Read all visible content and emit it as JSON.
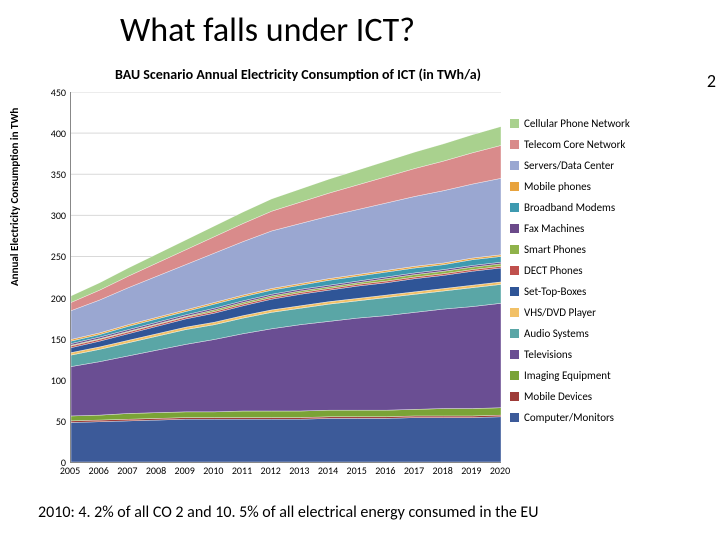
{
  "title": "What falls under ICT?",
  "slide_number": "2",
  "chart": {
    "type": "area",
    "title": "BAU Scenario Annual Electricity Consumption of ICT (in TWh/a)",
    "ylabel": "Annual Electricity Consumption in TWh",
    "title_fontsize": 14,
    "label_fontsize": 11,
    "tick_fontsize": 10,
    "background_color": "#ffffff",
    "grid_color": "#d9d9d9",
    "ylim": [
      0,
      450
    ],
    "ytick_step": 50,
    "yticks": [
      0,
      50,
      100,
      150,
      200,
      250,
      300,
      350,
      400,
      450
    ],
    "x_categories": [
      "2005",
      "2006",
      "2007",
      "2008",
      "2009",
      "2010",
      "2011",
      "2012",
      "2013",
      "2014",
      "2015",
      "2016",
      "2017",
      "2018",
      "2019",
      "2020"
    ],
    "legend_order": [
      "Cellular Phone Network",
      "Telecom Core Network",
      "Servers/Data Center",
      "Mobile phones",
      "Broadband Modems",
      "Fax Machines",
      "Smart Phones",
      "DECT Phones",
      "Set-Top-Boxes",
      "VHS/DVD Player",
      "Audio Systems",
      "Televisions",
      "Imaging Equipment",
      "Mobile Devices",
      "Computer/Monitors"
    ],
    "colors": {
      "Cellular Phone Network": "#a9d18e",
      "Telecom Core Network": "#d98b8b",
      "Servers/Data Center": "#9aa7d1",
      "Mobile phones": "#e8a33d",
      "Broadband Modems": "#3e9ab0",
      "Fax Machines": "#6b4a8a",
      "Smart Phones": "#8fb24a",
      "DECT Phones": "#c0504d",
      "Set-Top-Boxes": "#2f5597",
      "VHS/DVD Player": "#f2c167",
      "Audio Systems": "#5aa6a6",
      "Televisions": "#6a4e93",
      "Imaging Equipment": "#7aa336",
      "Mobile Devices": "#9e3b38",
      "Computer/Monitors": "#3c5a99"
    },
    "series": {
      "Computer/Monitors": [
        48,
        49,
        50,
        51,
        52,
        52,
        52,
        52,
        52,
        53,
        53,
        53,
        54,
        54,
        54,
        55
      ],
      "Mobile Devices": [
        2,
        2,
        2,
        2,
        2,
        2,
        2,
        2,
        2,
        2,
        2,
        2,
        2,
        2,
        2,
        2
      ],
      "Imaging Equipment": [
        6,
        6,
        7,
        7,
        7,
        7,
        8,
        8,
        8,
        8,
        8,
        8,
        8,
        9,
        9,
        9
      ],
      "Televisions": [
        60,
        65,
        70,
        76,
        82,
        88,
        94,
        100,
        105,
        108,
        112,
        115,
        118,
        121,
        124,
        127
      ],
      "Audio Systems": [
        14,
        15,
        16,
        17,
        18,
        18,
        19,
        20,
        20,
        21,
        21,
        22,
        22,
        22,
        23,
        23
      ],
      "VHS/DVD Player": [
        3,
        3,
        3,
        3,
        3,
        3,
        3,
        3,
        3,
        3,
        3,
        3,
        3,
        3,
        3,
        3
      ],
      "Set-Top-Boxes": [
        6,
        7,
        8,
        9,
        10,
        11,
        12,
        13,
        14,
        14,
        15,
        15,
        16,
        16,
        17,
        17
      ],
      "DECT Phones": [
        2,
        2,
        2,
        2,
        2,
        2,
        2,
        2,
        2,
        2,
        2,
        2,
        2,
        2,
        2,
        2
      ],
      "Smart Phones": [
        1,
        1,
        1,
        1,
        1,
        2,
        2,
        2,
        2,
        2,
        2,
        3,
        3,
        3,
        3,
        3
      ],
      "Fax Machines": [
        2,
        2,
        2,
        2,
        2,
        2,
        2,
        2,
        2,
        2,
        2,
        2,
        2,
        2,
        2,
        2
      ],
      "Broadband Modems": [
        3,
        3,
        4,
        4,
        4,
        5,
        5,
        5,
        5,
        6,
        6,
        6,
        6,
        6,
        7,
        7
      ],
      "Mobile phones": [
        2,
        2,
        2,
        2,
        2,
        2,
        2,
        2,
        2,
        2,
        2,
        2,
        2,
        2,
        2,
        2
      ],
      "Servers/Data Center": [
        35,
        40,
        45,
        50,
        55,
        60,
        65,
        70,
        73,
        76,
        79,
        82,
        85,
        88,
        90,
        93
      ],
      "Telecom Core Network": [
        10,
        12,
        14,
        16,
        18,
        20,
        22,
        24,
        26,
        28,
        30,
        32,
        34,
        36,
        38,
        40
      ],
      "Cellular Phone Network": [
        8,
        9,
        10,
        11,
        12,
        13,
        14,
        15,
        16,
        17,
        18,
        19,
        20,
        21,
        22,
        23
      ]
    },
    "stack_order": [
      "Computer/Monitors",
      "Mobile Devices",
      "Imaging Equipment",
      "Televisions",
      "Audio Systems",
      "VHS/DVD Player",
      "Set-Top-Boxes",
      "DECT Phones",
      "Smart Phones",
      "Fax Machines",
      "Broadband Modems",
      "Mobile phones",
      "Servers/Data Center",
      "Telecom Core Network",
      "Cellular Phone Network"
    ]
  },
  "footnote": "2010: 4. 2% of all CO 2 and 10. 5% of all electrical energy consumed in the EU"
}
